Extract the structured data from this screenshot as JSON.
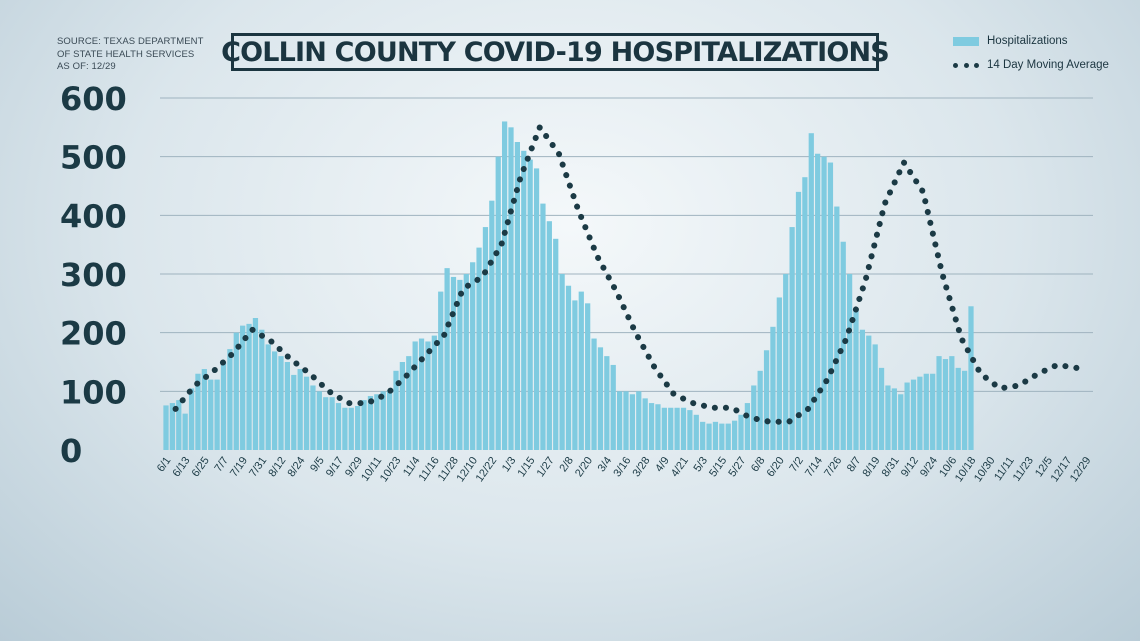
{
  "source_lines": [
    "Source: Texas Department",
    "of State Health Services",
    "As of: 12/29"
  ],
  "chart_data": {
    "type": "bar",
    "title": "COLLIN COUNTY COVID-19 HOSPITALIZATIONS",
    "xlabel": "",
    "ylabel": "",
    "ylim": [
      0,
      600
    ],
    "yticks": [
      0,
      100,
      200,
      300,
      400,
      500,
      600
    ],
    "grid": true,
    "legend_position": "top-right",
    "legend": [
      "Hospitalizations",
      "14 Day Moving Average"
    ],
    "colors": {
      "bars": "#7fcbe0",
      "moving_average": "#1b3a45",
      "text": "#1b3a45"
    },
    "x_tick_labels": [
      "6/1",
      "6/13",
      "6/25",
      "7/7",
      "7/19",
      "7/31",
      "8/12",
      "8/24",
      "9/5",
      "9/17",
      "9/29",
      "10/11",
      "10/23",
      "11/4",
      "11/16",
      "11/28",
      "12/10",
      "12/22",
      "1/3",
      "1/15",
      "1/27",
      "2/8",
      "2/20",
      "3/4",
      "3/16",
      "3/28",
      "4/9",
      "4/21",
      "5/3",
      "5/15",
      "5/27",
      "6/8",
      "6/20",
      "7/2",
      "7/14",
      "7/26",
      "8/7",
      "8/19",
      "8/31",
      "9/12",
      "9/24",
      "10/6",
      "10/18",
      "10/30",
      "11/11",
      "11/23",
      "12/5",
      "12/17",
      "12/29"
    ],
    "series": [
      {
        "name": "Hospitalizations",
        "type": "bar",
        "sample_interval_days": 4,
        "values": [
          76,
          80,
          85,
          62,
          105,
          130,
          138,
          120,
          120,
          150,
          172,
          200,
          212,
          215,
          225,
          205,
          180,
          168,
          160,
          150,
          128,
          138,
          125,
          110,
          100,
          90,
          90,
          80,
          72,
          72,
          75,
          85,
          92,
          95,
          100,
          102,
          135,
          150,
          160,
          185,
          190,
          185,
          195,
          270,
          310,
          295,
          290,
          300,
          320,
          345,
          380,
          425,
          500,
          560,
          550,
          525,
          510,
          495,
          480,
          420,
          390,
          360,
          300,
          280,
          255,
          270,
          250,
          190,
          175,
          160,
          145,
          100,
          100,
          95,
          100,
          88,
          80,
          78,
          72,
          72,
          72,
          72,
          68,
          60,
          48,
          45,
          48,
          45,
          45,
          50,
          60,
          80,
          110,
          135,
          170,
          210,
          260,
          300,
          380,
          440,
          465,
          540,
          505,
          500,
          490,
          415,
          355,
          300,
          240,
          205,
          195,
          180,
          140,
          110,
          105,
          95,
          115,
          120,
          125,
          130,
          130,
          160,
          155,
          160,
          140,
          135,
          245
        ]
      },
      {
        "name": "14 Day Moving Average",
        "type": "line",
        "sample_interval_days": 12,
        "values": [
          70,
          110,
          135,
          165,
          205,
          185,
          155,
          130,
          100,
          80,
          80,
          95,
          125,
          160,
          195,
          275,
          295,
          350,
          465,
          550,
          505,
          410,
          330,
          270,
          200,
          140,
          95,
          80,
          72,
          72,
          55,
          48,
          48,
          70,
          120,
          190,
          290,
          420,
          490,
          440,
          300,
          190,
          130,
          105,
          110,
          130,
          145,
          140
        ]
      }
    ]
  }
}
